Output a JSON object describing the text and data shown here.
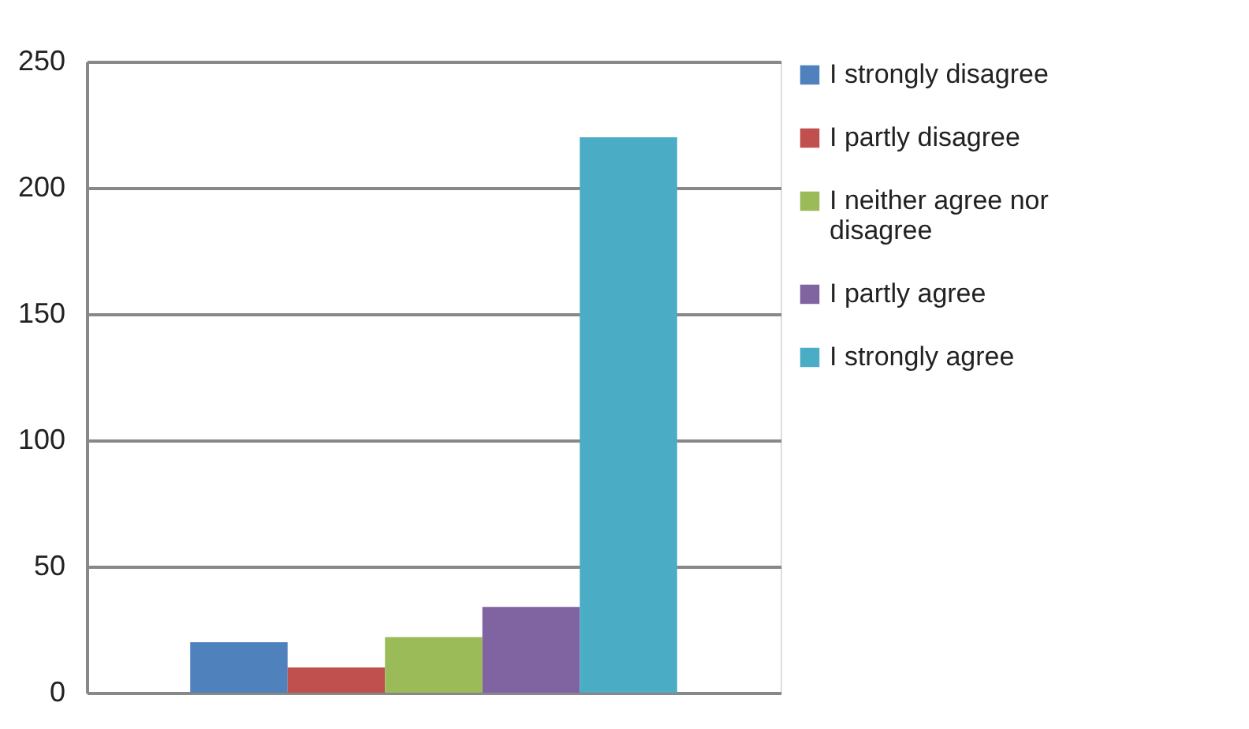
{
  "chart_data": {
    "type": "bar",
    "categories": [
      null
    ],
    "series": [
      {
        "name": "I strongly disagree",
        "color": "#4f81bd",
        "values": [
          20
        ]
      },
      {
        "name": "I partly disagree",
        "color": "#c0504d",
        "values": [
          10
        ]
      },
      {
        "name": "I neither agree nor disagree",
        "color": "#9bbb59",
        "values": [
          22
        ]
      },
      {
        "name": "I partly agree",
        "color": "#8064a2",
        "values": [
          34
        ]
      },
      {
        "name": "I strongly agree",
        "color": "#4bacc6",
        "values": [
          220
        ]
      }
    ],
    "ylim": [
      0,
      250
    ],
    "yticks": [
      0,
      50,
      100,
      150,
      200,
      250
    ],
    "grid": "y",
    "legend": "right"
  }
}
